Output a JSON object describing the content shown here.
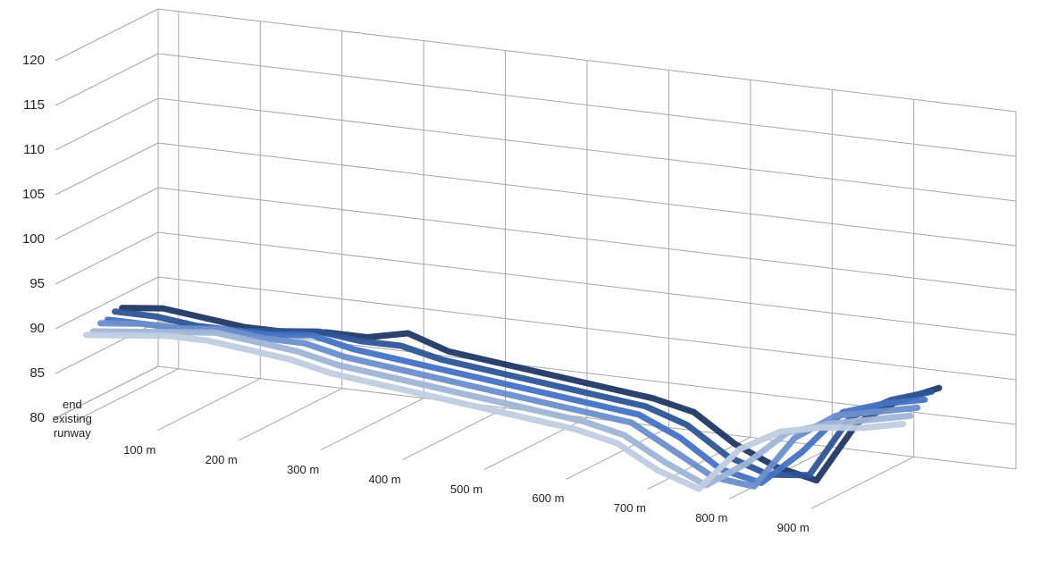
{
  "chart_data": {
    "type": "line3d",
    "categories": [
      "end existing runway",
      null,
      "100 m",
      null,
      "200 m",
      null,
      "300 m",
      null,
      "400 m",
      null,
      "500 m",
      null,
      "600 m",
      null,
      "700 m",
      null,
      "800 m",
      null,
      "900 m",
      null,
      null
    ],
    "series": [
      {
        "color": "#1f3864",
        "values": [
          90,
          90.5,
          90,
          89.5,
          89.5,
          90,
          90,
          91,
          89.5,
          89,
          88.5,
          88,
          87.5,
          87,
          86,
          83,
          81,
          80,
          87,
          90,
          92
        ]
      },
      {
        "color": "#2e5597",
        "values": [
          90,
          90,
          89.5,
          89.5,
          90,
          90.5,
          90,
          90,
          89,
          88.5,
          88,
          87.5,
          87,
          86.5,
          85,
          82,
          80.5,
          81,
          88,
          90.5,
          92
        ]
      },
      {
        "color": "#4472c4",
        "values": [
          89.5,
          89.5,
          89.5,
          90,
          90,
          90.5,
          89.5,
          89,
          88.5,
          88,
          87.5,
          87,
          86.5,
          86,
          84,
          81,
          80,
          84,
          89,
          90.5,
          91.5
        ]
      },
      {
        "color": "#6b8fcc",
        "values": [
          89.5,
          90,
          90,
          90.5,
          90,
          90,
          89,
          88.5,
          88,
          87.5,
          87,
          86.5,
          86,
          85.5,
          83,
          80.5,
          80,
          86,
          89,
          90,
          91
        ]
      },
      {
        "color": "#9fb4d6",
        "values": [
          89,
          89.5,
          90,
          90.5,
          90,
          89.5,
          88.5,
          88,
          87.5,
          87,
          86.5,
          86,
          85.5,
          84.5,
          82,
          80,
          83,
          87,
          88.5,
          89.5,
          90.5
        ]
      },
      {
        "color": "#c0cde0",
        "values": [
          89,
          89.5,
          90,
          90,
          89.5,
          89,
          88,
          87.5,
          87,
          86.5,
          86,
          85.5,
          85,
          84,
          81.5,
          80,
          85,
          87.5,
          88.5,
          89,
          90
        ]
      }
    ],
    "ylim": [
      80,
      120
    ],
    "yticks": [
      80,
      85,
      90,
      95,
      100,
      105,
      110,
      115,
      120
    ],
    "grid": true
  }
}
